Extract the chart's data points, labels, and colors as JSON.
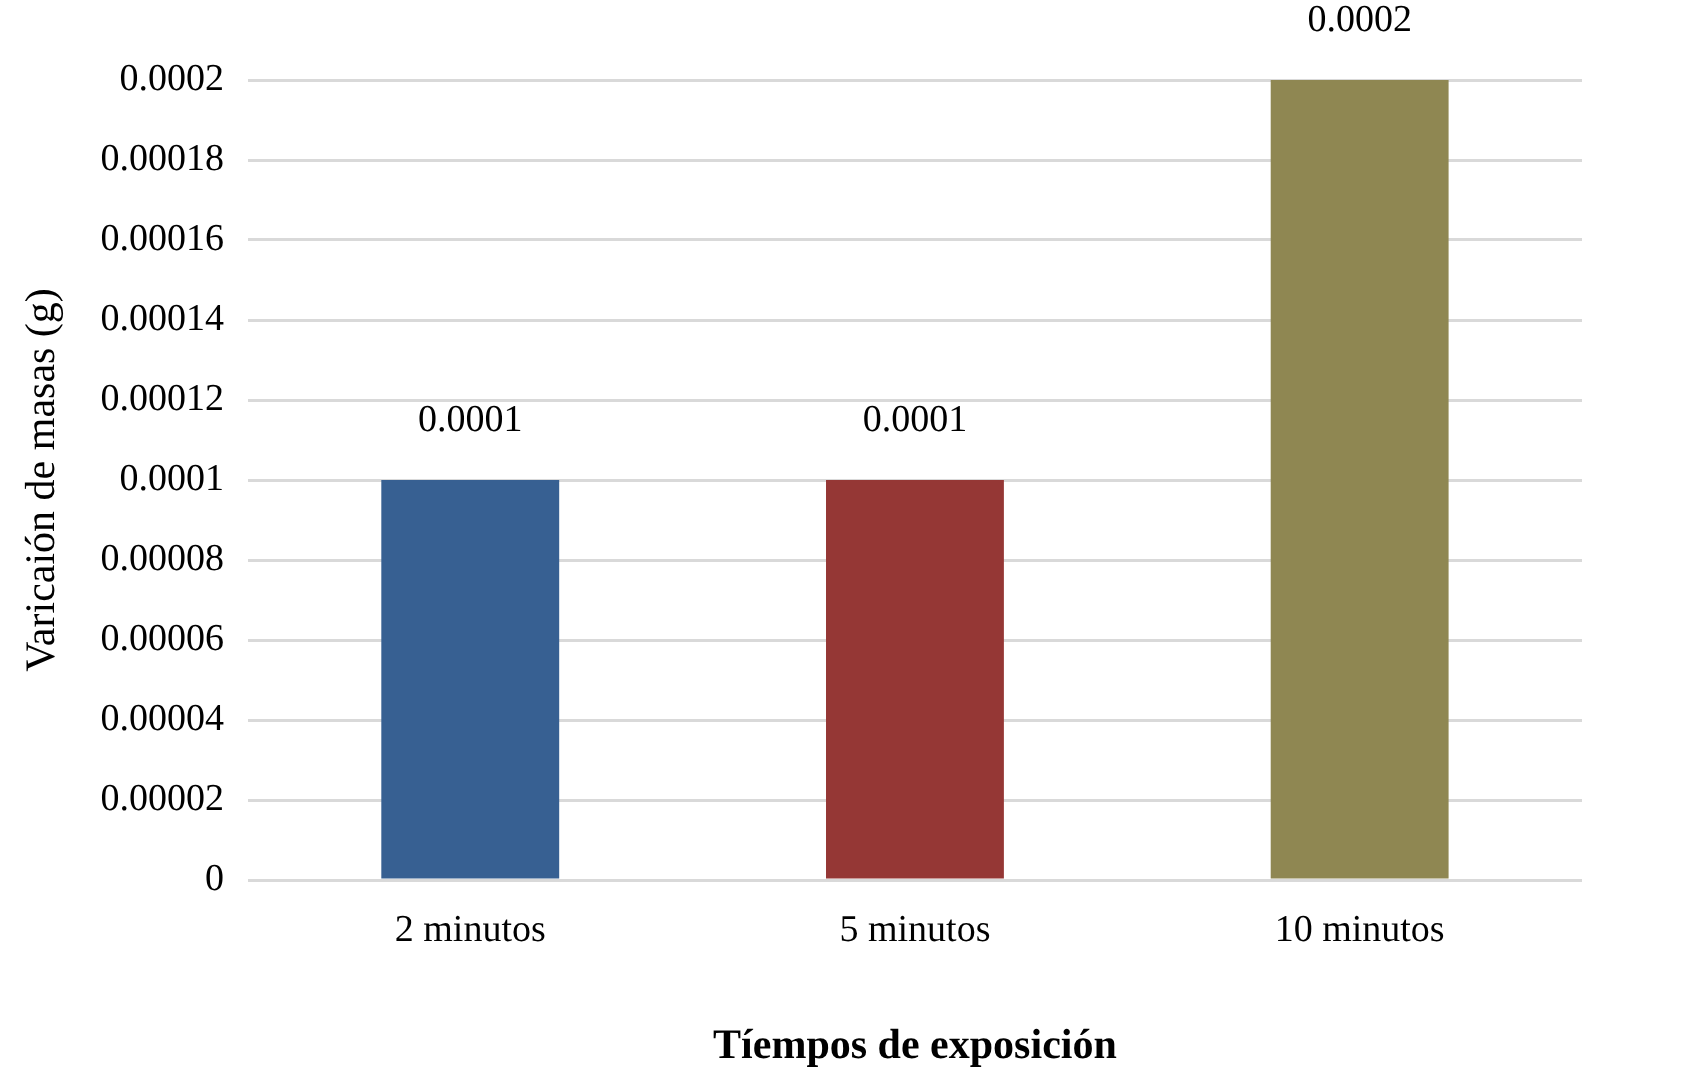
{
  "chart_data": {
    "type": "bar",
    "xlabel": "Tíempos de exposición",
    "ylabel": "Varicaión de masas (g)",
    "categories": [
      "2 minutos",
      "5 minutos",
      "10 minutos"
    ],
    "values": [
      0.0001,
      0.0001,
      0.0002
    ],
    "colors": [
      "#376092",
      "#953735",
      "#8f8752"
    ],
    "ylim": [
      0,
      0.0002
    ],
    "yticks": [
      0,
      {
        "value": 2e-05,
        "label": "0.00002"
      },
      {
        "value": 4e-05,
        "label": "0.00004"
      },
      {
        "value": 6e-05,
        "label": "0.00006"
      },
      {
        "value": 8e-05,
        "label": "0.00008"
      },
      0.0001,
      0.00012,
      0.00014,
      0.00016,
      0.00018,
      0.0002
    ],
    "grid": "y",
    "data_labels": true
  }
}
